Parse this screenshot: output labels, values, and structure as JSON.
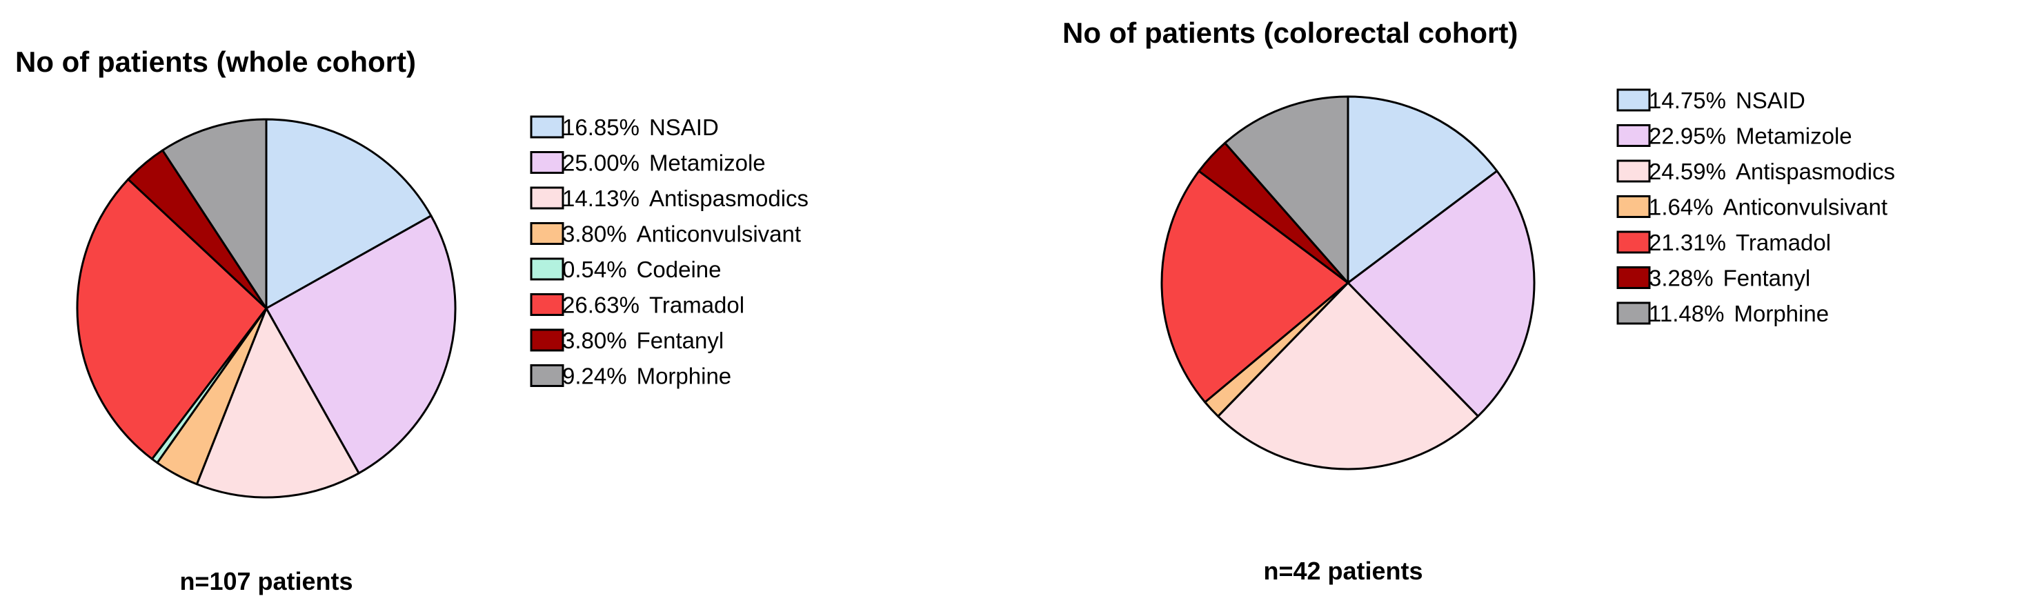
{
  "chart_data": [
    {
      "type": "pie",
      "title": "No of patients (whole cohort)",
      "footnote": "n=107 patients",
      "legend_position": "right",
      "start_angle": "12 o'clock, clockwise",
      "slices": [
        {
          "label": "NSAID",
          "value": 16.85,
          "value_text": "16.85%",
          "color": "#c9dff7"
        },
        {
          "label": "Metamizole",
          "value": 25.0,
          "value_text": "25.00%",
          "color": "#ecccf5"
        },
        {
          "label": "Antispasmodics",
          "value": 14.13,
          "value_text": "14.13%",
          "color": "#fde0e2"
        },
        {
          "label": "Anticonvulsivant",
          "value": 3.8,
          "value_text": "3.80%",
          "color": "#fcc38a"
        },
        {
          "label": "Codeine",
          "value": 0.54,
          "value_text": "0.54%",
          "color": "#b3f2df"
        },
        {
          "label": "Tramadol",
          "value": 26.63,
          "value_text": "26.63%",
          "color": "#f84444"
        },
        {
          "label": "Fentanyl",
          "value": 3.8,
          "value_text": "3.80%",
          "color": "#a00000"
        },
        {
          "label": "Morphine",
          "value": 9.24,
          "value_text": "9.24%",
          "color": "#a2a2a4"
        }
      ]
    },
    {
      "type": "pie",
      "title": "No of patients (colorectal cohort)",
      "footnote": "n=42 patients",
      "legend_position": "right",
      "start_angle": "12 o'clock, clockwise",
      "slices": [
        {
          "label": "NSAID",
          "value": 14.75,
          "value_text": "14.75%",
          "color": "#c9dff7"
        },
        {
          "label": "Metamizole",
          "value": 22.95,
          "value_text": "22.95%",
          "color": "#ecccf5"
        },
        {
          "label": "Antispasmodics",
          "value": 24.59,
          "value_text": "24.59%",
          "color": "#fde0e2"
        },
        {
          "label": "Anticonvulsivant",
          "value": 1.64,
          "value_text": "1.64%",
          "color": "#fcc38a"
        },
        {
          "label": "Tramadol",
          "value": 21.31,
          "value_text": "21.31%",
          "color": "#f84444"
        },
        {
          "label": "Fentanyl",
          "value": 3.28,
          "value_text": "3.28%",
          "color": "#a00000"
        },
        {
          "label": "Morphine",
          "value": 11.48,
          "value_text": "11.48%",
          "color": "#a2a2a4"
        }
      ]
    }
  ]
}
